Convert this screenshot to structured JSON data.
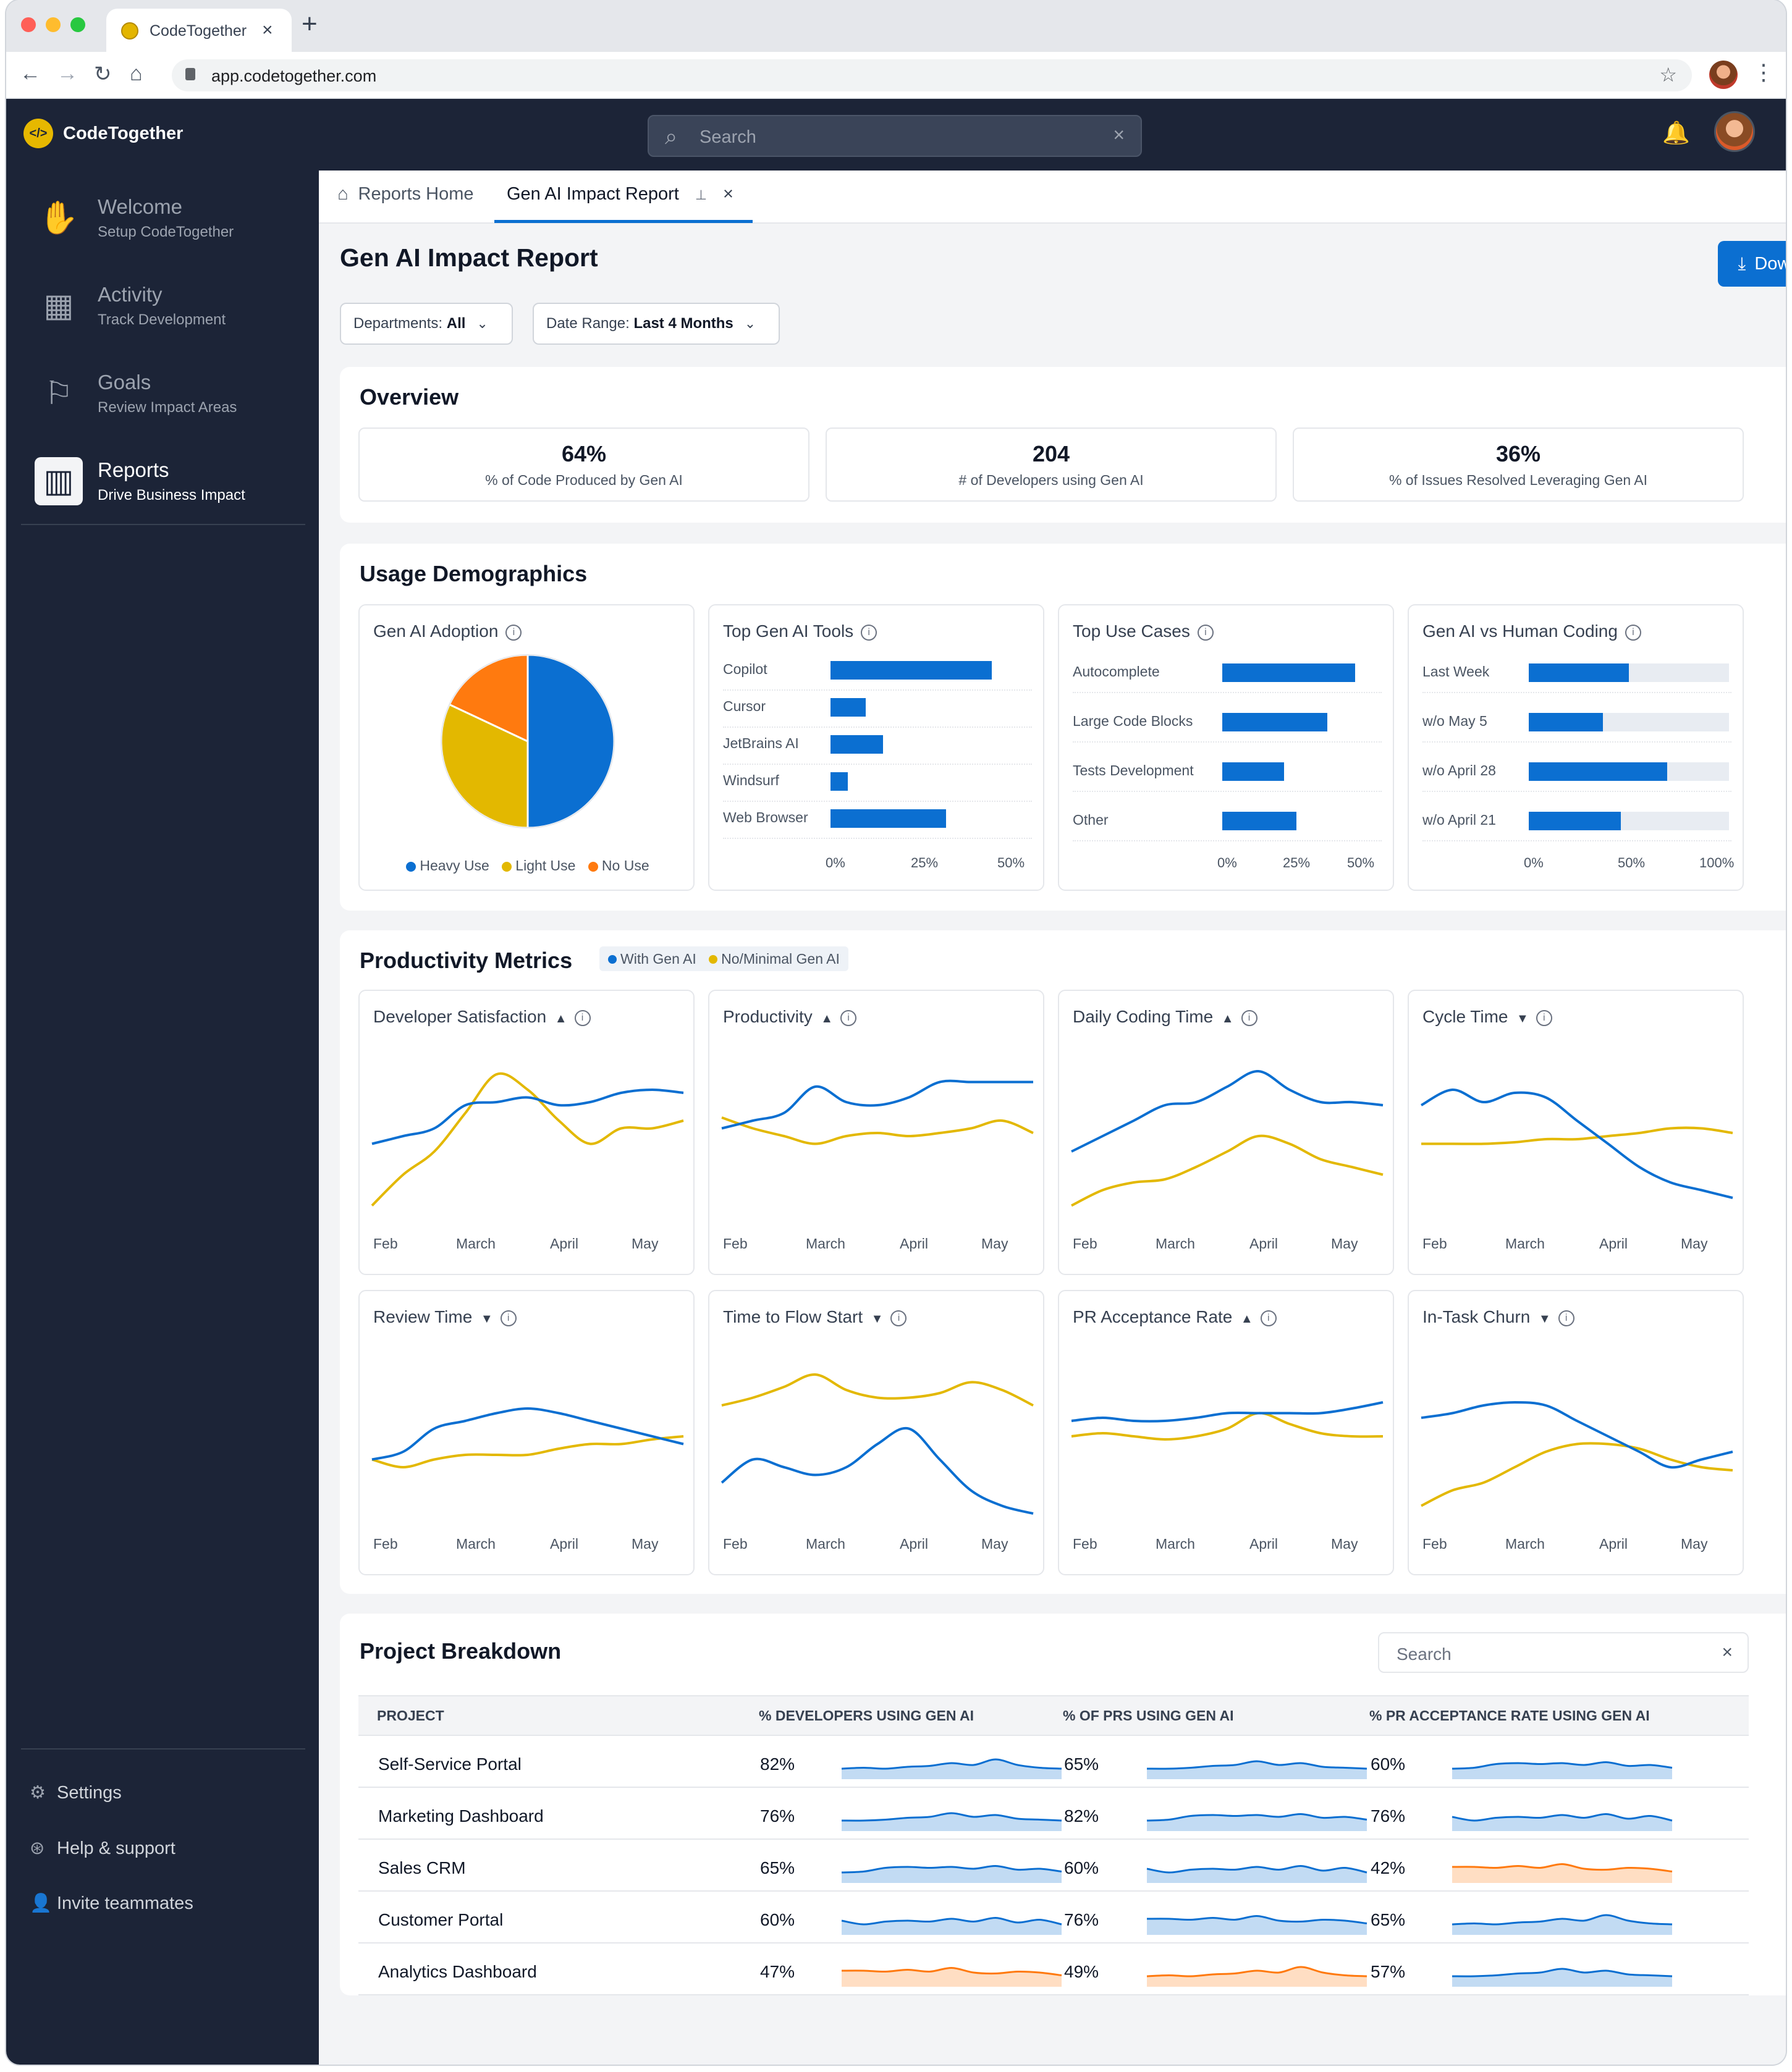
{
  "browser": {
    "tab_title": "CodeTogether",
    "url": "app.codetogether.com"
  },
  "app": {
    "name": "CodeTogether",
    "search_placeholder": "Search"
  },
  "sidebar": {
    "items": [
      {
        "title": "Welcome",
        "subtitle": "Setup CodeTogether",
        "icon": "wave-hand-icon"
      },
      {
        "title": "Activity",
        "subtitle": "Track Development",
        "icon": "dashboard-icon"
      },
      {
        "title": "Goals",
        "subtitle": "Review Impact Areas",
        "icon": "flag-icon"
      },
      {
        "title": "Reports",
        "subtitle": "Drive Business Impact",
        "icon": "report-icon",
        "active": true
      }
    ],
    "bottom": [
      {
        "label": "Settings",
        "icon": "gear-icon"
      },
      {
        "label": "Help & support",
        "icon": "lifebuoy-icon"
      },
      {
        "label": "Invite teammates",
        "icon": "add-user-icon"
      }
    ]
  },
  "tabs": {
    "home": "Reports Home",
    "current": "Gen AI Impact Report"
  },
  "page": {
    "title": "Gen AI Impact Report",
    "download_label": "Download PDF Report",
    "filters": {
      "dept_label": "Departments:",
      "dept_value": "All",
      "date_label": "Date Range:",
      "date_value": "Last 4 Months"
    }
  },
  "overview": {
    "title": "Overview",
    "stats": [
      {
        "value": "64%",
        "label": "% of Code Produced by Gen AI"
      },
      {
        "value": "204",
        "label": "# of Developers using Gen AI"
      },
      {
        "value": "36%",
        "label": "% of Issues Resolved Leveraging Gen AI"
      }
    ]
  },
  "usage": {
    "title": "Usage Demographics",
    "adoption": {
      "title": "Gen AI Adoption",
      "slices": [
        {
          "name": "Heavy Use",
          "value": 50,
          "color": "#0b6fd1"
        },
        {
          "name": "Light Use",
          "value": 32,
          "color": "#e3b800"
        },
        {
          "name": "No Use",
          "value": 18,
          "color": "#ff7a0f"
        }
      ],
      "legend": [
        "Heavy Use",
        "Light Use",
        "No Use"
      ]
    },
    "tools": {
      "title": "Top Gen AI Tools",
      "items": [
        {
          "label": "Copilot",
          "value": 46
        },
        {
          "label": "Cursor",
          "value": 10
        },
        {
          "label": "JetBrains AI",
          "value": 15
        },
        {
          "label": "Windsurf",
          "value": 5
        },
        {
          "label": "Web Browser",
          "value": 33
        }
      ],
      "ticks": [
        "0%",
        "25%",
        "50%"
      ]
    },
    "usecases": {
      "title": "Top Use Cases",
      "items": [
        {
          "label": "Autocomplete",
          "value": 43
        },
        {
          "label": "Large Code Blocks",
          "value": 34
        },
        {
          "label": "Tests Development",
          "value": 20
        },
        {
          "label": "Other",
          "value": 24
        }
      ],
      "ticks": [
        "0%",
        "25%",
        "50%"
      ]
    },
    "vs": {
      "title": "Gen AI vs Human Coding",
      "items": [
        {
          "label": "Last Week",
          "value": 50
        },
        {
          "label": "w/o May 5",
          "value": 37
        },
        {
          "label": "w/o April 28",
          "value": 69
        },
        {
          "label": "w/o April 21",
          "value": 46
        }
      ],
      "ticks": [
        "0%",
        "50%",
        "100%"
      ]
    }
  },
  "productivity": {
    "title": "Productivity Metrics",
    "legend": {
      "with": "With Gen AI",
      "without": "No/Minimal Gen AI"
    },
    "months": [
      "Feb",
      "March",
      "April",
      "May"
    ],
    "metrics": [
      {
        "title": "Developer Satisfaction",
        "trend": "up",
        "with": [
          0.45,
          0.5,
          0.55,
          0.7,
          0.72,
          0.75,
          0.7,
          0.72,
          0.78,
          0.8,
          0.78
        ],
        "without": [
          0.05,
          0.25,
          0.4,
          0.65,
          0.9,
          0.8,
          0.6,
          0.45,
          0.55,
          0.55,
          0.6
        ]
      },
      {
        "title": "Productivity",
        "trend": "up",
        "with": [
          0.55,
          0.6,
          0.65,
          0.82,
          0.72,
          0.7,
          0.75,
          0.85,
          0.85,
          0.85,
          0.85
        ],
        "without": [
          0.62,
          0.55,
          0.5,
          0.45,
          0.5,
          0.52,
          0.5,
          0.52,
          0.55,
          0.6,
          0.52
        ]
      },
      {
        "title": "Daily Coding Time",
        "trend": "up",
        "with": [
          0.4,
          0.5,
          0.6,
          0.7,
          0.72,
          0.82,
          0.92,
          0.8,
          0.72,
          0.72,
          0.7
        ],
        "without": [
          0.05,
          0.15,
          0.2,
          0.22,
          0.3,
          0.4,
          0.5,
          0.45,
          0.35,
          0.3,
          0.25
        ]
      },
      {
        "title": "Cycle Time",
        "trend": "down",
        "with": [
          0.7,
          0.8,
          0.72,
          0.78,
          0.75,
          0.6,
          0.45,
          0.3,
          0.2,
          0.15,
          0.1
        ],
        "without": [
          0.45,
          0.45,
          0.45,
          0.46,
          0.48,
          0.48,
          0.5,
          0.52,
          0.55,
          0.55,
          0.52
        ]
      },
      {
        "title": "Review Time",
        "trend": "down",
        "with": [
          0.35,
          0.4,
          0.55,
          0.6,
          0.65,
          0.68,
          0.65,
          0.6,
          0.55,
          0.5,
          0.45
        ],
        "without": [
          0.35,
          0.3,
          0.35,
          0.38,
          0.38,
          0.38,
          0.42,
          0.45,
          0.45,
          0.48,
          0.5
        ]
      },
      {
        "title": "Time to Flow Start",
        "trend": "down",
        "with": [
          0.2,
          0.35,
          0.3,
          0.25,
          0.3,
          0.45,
          0.55,
          0.35,
          0.15,
          0.05,
          0.0
        ],
        "without": [
          0.7,
          0.75,
          0.82,
          0.9,
          0.8,
          0.75,
          0.75,
          0.78,
          0.85,
          0.8,
          0.7
        ]
      },
      {
        "title": "PR Acceptance Rate",
        "trend": "up",
        "with": [
          0.6,
          0.62,
          0.6,
          0.6,
          0.62,
          0.65,
          0.65,
          0.65,
          0.65,
          0.68,
          0.72
        ],
        "without": [
          0.5,
          0.52,
          0.5,
          0.48,
          0.5,
          0.55,
          0.65,
          0.58,
          0.52,
          0.5,
          0.5
        ]
      },
      {
        "title": "In-Task Churn",
        "trend": "down",
        "with": [
          0.62,
          0.65,
          0.7,
          0.72,
          0.7,
          0.6,
          0.5,
          0.4,
          0.3,
          0.35,
          0.4
        ],
        "without": [
          0.05,
          0.15,
          0.2,
          0.3,
          0.4,
          0.45,
          0.45,
          0.42,
          0.35,
          0.3,
          0.28
        ]
      }
    ]
  },
  "projects": {
    "title": "Project Breakdown",
    "search_placeholder": "Search",
    "columns": [
      "PROJECT",
      "% DEVELOPERS USING GEN AI",
      "% OF PRS USING GEN AI",
      "% PR ACCEPTANCE RATE USING GEN AI"
    ],
    "rows": [
      {
        "name": "Self-Service Portal",
        "dev": "82%",
        "prs": "65%",
        "acc": "60%",
        "colors": [
          "#0b6fd1",
          "#0b6fd1",
          "#0b6fd1"
        ]
      },
      {
        "name": "Marketing Dashboard",
        "dev": "76%",
        "prs": "82%",
        "acc": "76%",
        "colors": [
          "#0b6fd1",
          "#0b6fd1",
          "#0b6fd1"
        ]
      },
      {
        "name": "Sales CRM",
        "dev": "65%",
        "prs": "60%",
        "acc": "42%",
        "colors": [
          "#0b6fd1",
          "#0b6fd1",
          "#ff7a0f"
        ]
      },
      {
        "name": "Customer Portal",
        "dev": "60%",
        "prs": "76%",
        "acc": "65%",
        "colors": [
          "#0b6fd1",
          "#0b6fd1",
          "#0b6fd1"
        ]
      },
      {
        "name": "Analytics Dashboard",
        "dev": "47%",
        "prs": "49%",
        "acc": "57%",
        "colors": [
          "#ff7a0f",
          "#ff7a0f",
          "#0b6fd1"
        ]
      }
    ]
  },
  "colors": {
    "accent": "#0b6fd1",
    "secondary": "#e3b800",
    "warn": "#ff7a0f",
    "sidebar": "#1c2437"
  }
}
